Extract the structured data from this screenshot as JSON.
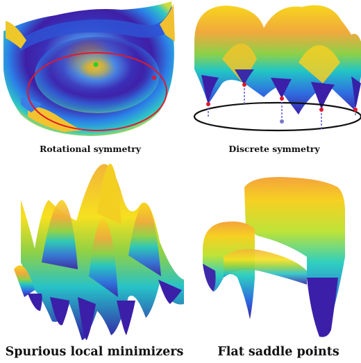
{
  "panels": [
    {
      "caption": "Rotational symmetry"
    },
    {
      "caption": "Discrete symmetry"
    },
    {
      "caption": "Spurious local minimizers"
    },
    {
      "caption": "Flat saddle points"
    }
  ],
  "colors": {
    "yellow": "#f7e21b",
    "orange": "#f2a93b",
    "cyan": "#24d4c5",
    "blue": "#2f6fe0",
    "indigo": "#3b1fa8",
    "red": "#e0182d",
    "green": "#2bd12b"
  }
}
